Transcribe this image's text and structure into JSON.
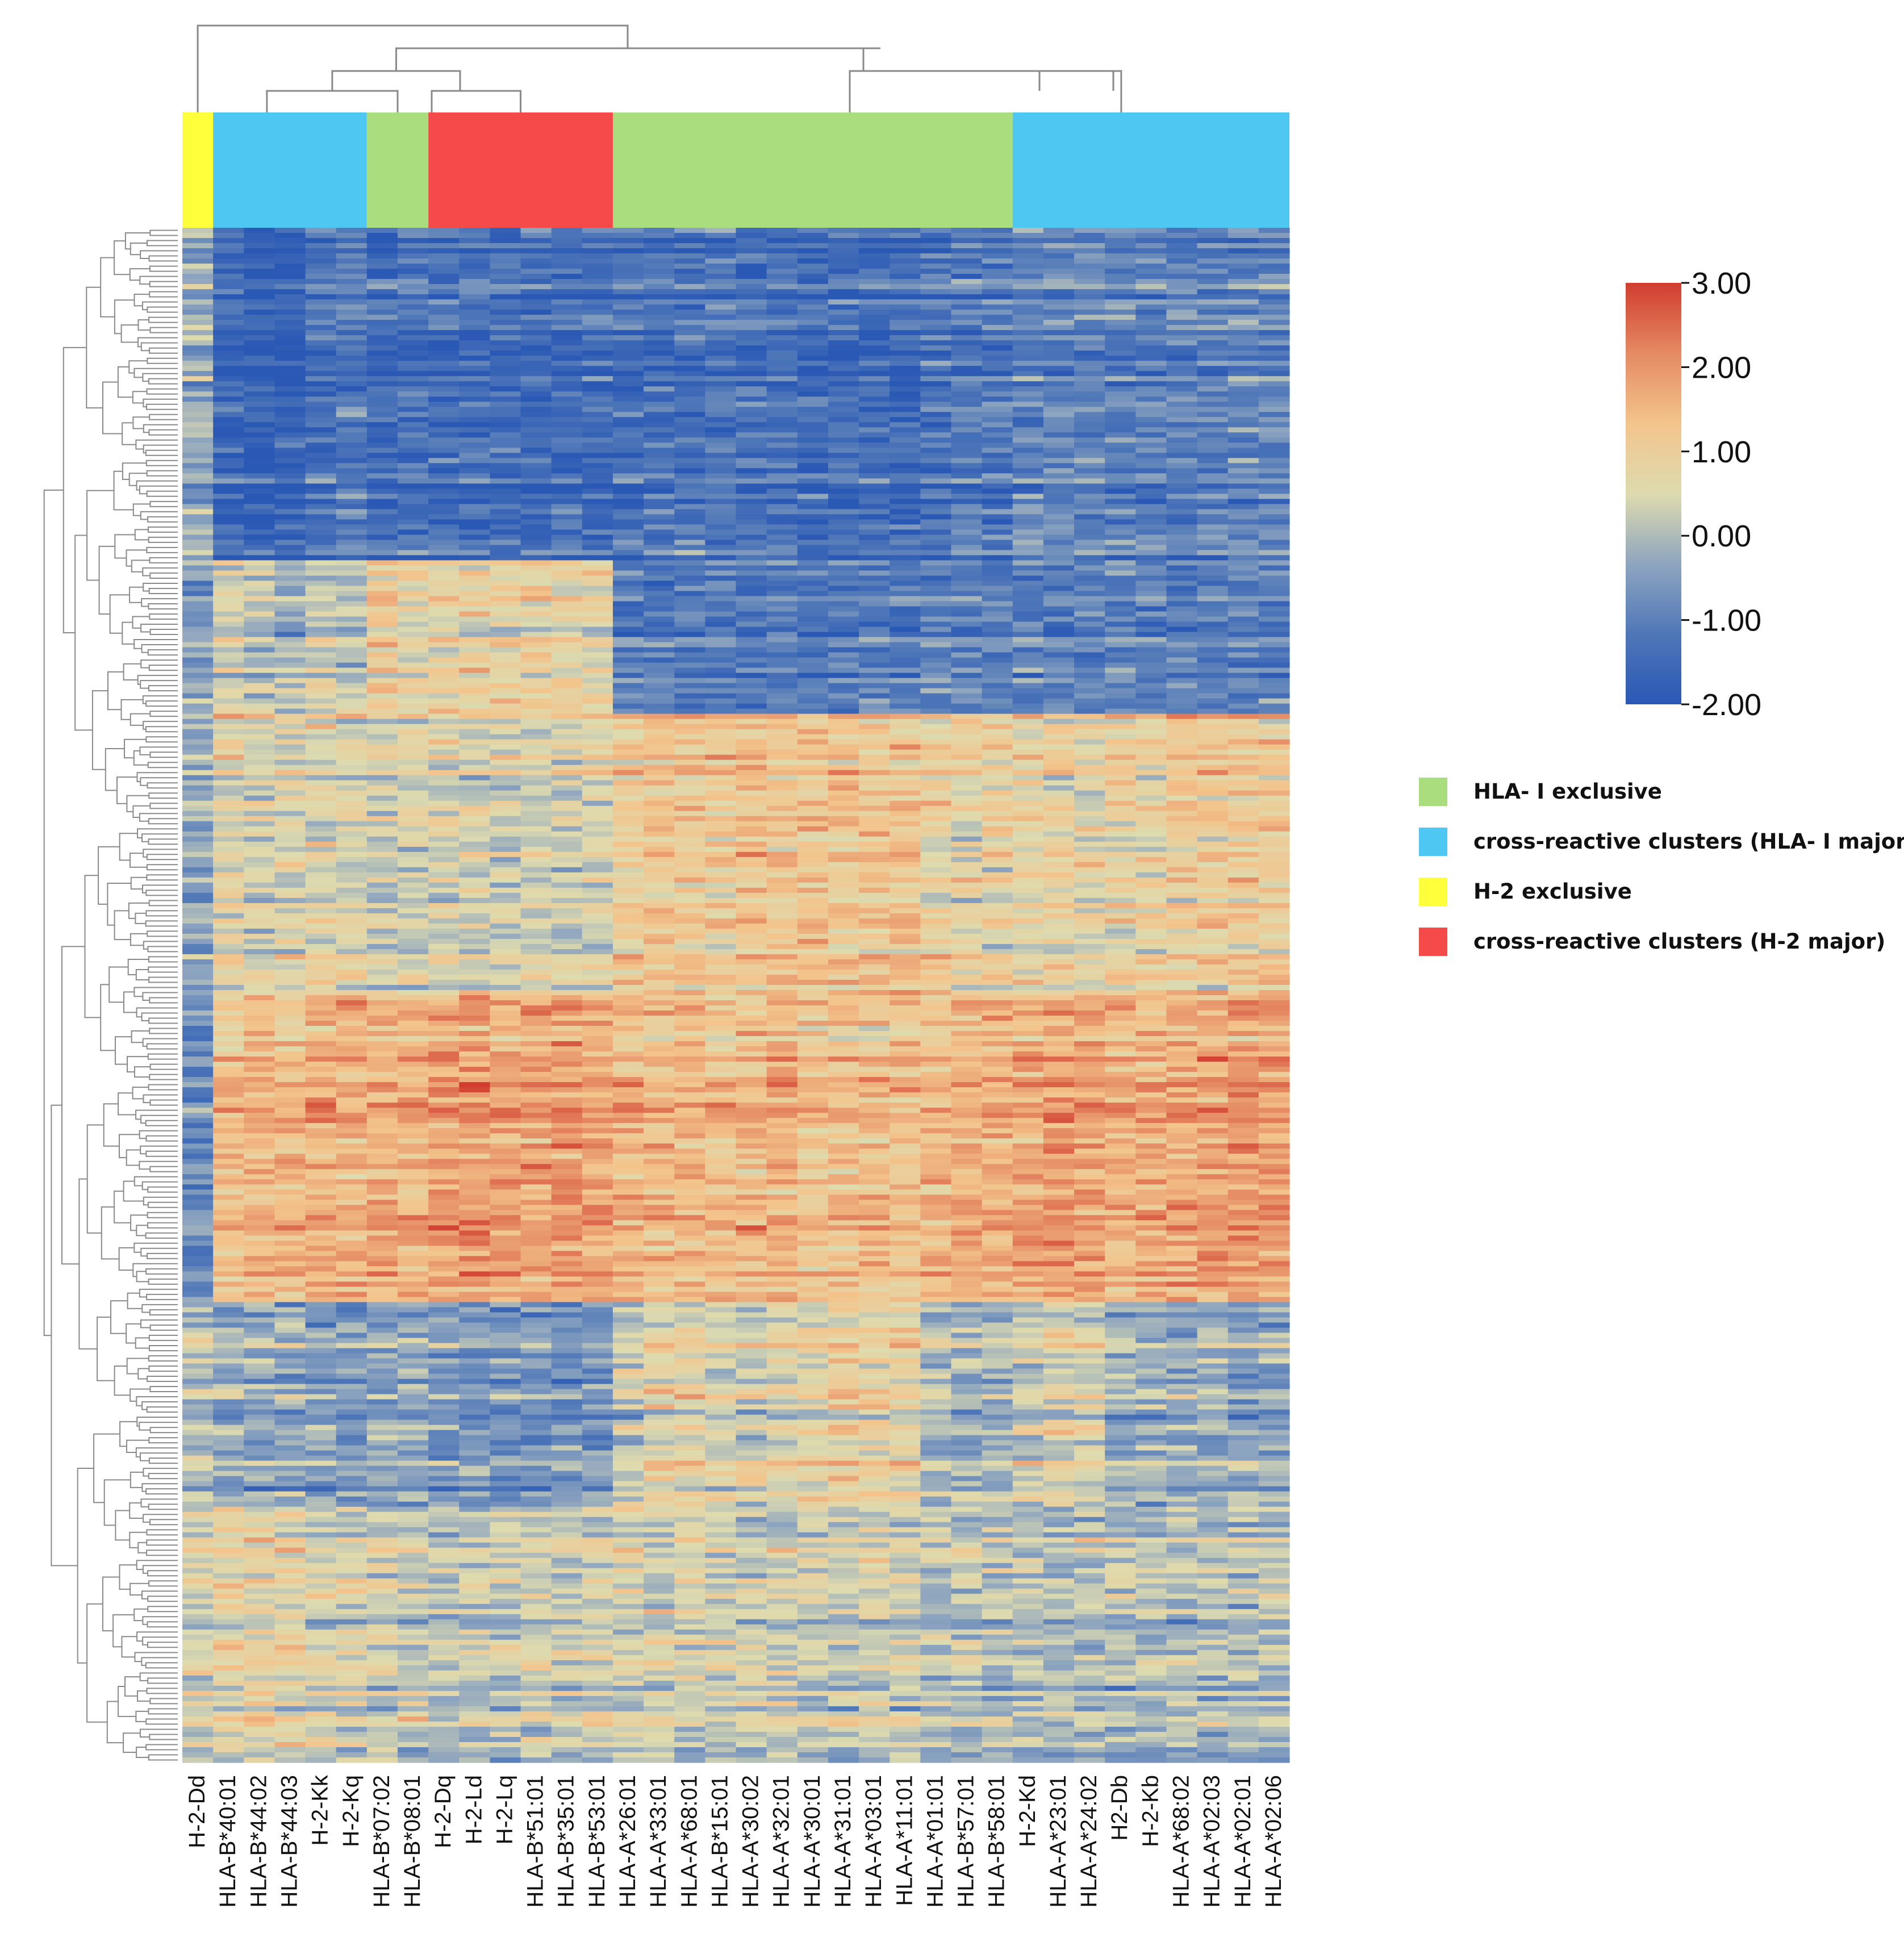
{
  "chart_data": {
    "type": "heatmap",
    "title": "",
    "columns": [
      "H-2-Dd",
      "HLA-B*40:01",
      "HLA-B*44:02",
      "HLA-B*44:03",
      "H-2-Kk",
      "H-2-Kq",
      "HLA-B*07:02",
      "HLA-B*08:01",
      "H-2-Dq",
      "H-2-Ld",
      "H-2-Lq",
      "HLA-B*51:01",
      "HLA-B*35:01",
      "HLA-B*53:01",
      "HLA-A*26:01",
      "HLA-A*33:01",
      "HLA-A*68:01",
      "HLA-B*15:01",
      "HLA-A*30:02",
      "HLA-A*32:01",
      "HLA-A*30:01",
      "HLA-A*31:01",
      "HLA-A*03:01",
      "HLA-A*11:01",
      "HLA-A*01:01",
      "HLA-B*57:01",
      "HLA-B*58:01",
      "H-2-Kd",
      "HLA-A*23:01",
      "HLA-A*24:02",
      "H2-Db",
      "H-2-Kb",
      "HLA-A*68:02",
      "HLA-A*02:03",
      "HLA-A*02:01",
      "HLA-A*02:06"
    ],
    "column_groups": [
      "yellow",
      "cyan",
      "cyan",
      "cyan",
      "cyan",
      "cyan",
      "green",
      "green",
      "red",
      "red",
      "red",
      "red",
      "red",
      "red",
      "green",
      "green",
      "green",
      "green",
      "green",
      "green",
      "green",
      "green",
      "green",
      "green",
      "green",
      "green",
      "green",
      "cyan",
      "cyan",
      "cyan",
      "cyan",
      "cyan",
      "cyan",
      "cyan",
      "cyan",
      "cyan"
    ],
    "group_colors": {
      "green": "#a9dd7e",
      "cyan": "#4ec8f3",
      "yellow": "#ffff3c",
      "red": "#f44a4a"
    },
    "color_scale": {
      "min": -2.0,
      "max": 3.0,
      "ticks": [
        "3.00",
        "2.00",
        "1.00",
        "0.00",
        "-1.00",
        "-2.00"
      ],
      "tick_values": [
        3,
        2,
        1,
        0,
        -1,
        -2
      ],
      "colors": [
        "#2a58b5",
        "#4f77b8",
        "#8ea5bf",
        "#dedbaf",
        "#f3c48c",
        "#e58a63",
        "#d13c2e"
      ]
    },
    "row_count": 300,
    "row_bands": [
      {
        "rows": [
          0,
          65
        ],
        "values": [
          -0.2,
          -1.5,
          -1.8,
          -1.7,
          -1.3,
          -1.1,
          -1.4,
          -1.3,
          -1.4,
          -1.3,
          -1.3,
          -1.4,
          -1.4,
          -1.4,
          -1.3,
          -1.3,
          -1.3,
          -1.2,
          -1.3,
          -1.3,
          -1.4,
          -1.4,
          -1.4,
          -1.5,
          -1.3,
          -1.2,
          -1.2,
          -0.9,
          -0.9,
          -0.9,
          -1.0,
          -1.0,
          -1.0,
          -1.0,
          -0.9,
          -0.9
        ]
      },
      {
        "rows": [
          65,
          95
        ],
        "values": [
          -0.5,
          0.5,
          0.1,
          -0.2,
          0.3,
          0.1,
          1.1,
          0.7,
          0.8,
          0.8,
          0.8,
          0.9,
          0.8,
          0.7,
          -1.0,
          -1.1,
          -1.1,
          -1.0,
          -1.1,
          -1.1,
          -1.2,
          -1.1,
          -1.1,
          -1.1,
          -1.0,
          -1.0,
          -1.0,
          -1.0,
          -1.0,
          -1.0,
          -1.0,
          -1.0,
          -1.0,
          -1.0,
          -1.0,
          -1.0
        ]
      },
      {
        "rows": [
          95,
          150
        ],
        "values": [
          -0.2,
          0.8,
          0.6,
          0.6,
          0.6,
          0.6,
          0.4,
          0.4,
          0.5,
          0.5,
          0.5,
          0.5,
          0.5,
          0.5,
          1.1,
          1.3,
          1.3,
          1.2,
          1.3,
          1.2,
          1.3,
          1.3,
          1.3,
          1.3,
          1.0,
          0.9,
          0.9,
          0.8,
          0.9,
          0.8,
          0.9,
          0.9,
          1.1,
          1.2,
          1.2,
          1.1
        ]
      },
      {
        "rows": [
          150,
          210
        ],
        "values": [
          -0.8,
          1.3,
          1.5,
          1.4,
          1.7,
          1.5,
          1.6,
          1.6,
          1.9,
          1.9,
          1.9,
          1.8,
          1.8,
          1.8,
          1.5,
          1.4,
          1.4,
          1.4,
          1.5,
          1.6,
          1.3,
          1.3,
          1.3,
          1.3,
          1.4,
          1.6,
          1.6,
          1.7,
          1.8,
          1.8,
          1.6,
          1.6,
          1.7,
          1.8,
          1.8,
          1.8
        ]
      },
      {
        "rows": [
          210,
          250
        ],
        "values": [
          0.1,
          -0.2,
          -0.2,
          -0.3,
          -0.5,
          -0.5,
          -0.3,
          -0.3,
          -0.6,
          -0.6,
          -0.6,
          -0.6,
          -0.6,
          -0.6,
          0.3,
          0.7,
          0.7,
          0.5,
          0.4,
          0.6,
          0.7,
          0.9,
          0.9,
          0.8,
          0.0,
          -0.1,
          -0.1,
          0.3,
          0.5,
          0.5,
          -0.2,
          -0.2,
          -0.3,
          -0.3,
          -0.3,
          -0.3
        ]
      },
      {
        "rows": [
          250,
          300
        ],
        "values": [
          0.4,
          0.7,
          0.8,
          0.7,
          0.4,
          0.4,
          0.3,
          0.3,
          0.1,
          0.2,
          0.2,
          0.3,
          0.3,
          0.3,
          0.3,
          0.4,
          0.4,
          0.3,
          0.3,
          0.3,
          0.3,
          0.3,
          0.3,
          0.3,
          0.1,
          0.1,
          0.1,
          0.0,
          0.0,
          0.0,
          0.0,
          0.0,
          0.0,
          0.0,
          0.0,
          0.0
        ]
      }
    ],
    "legend": {
      "placement": "right",
      "entries": [
        {
          "label": "HLA- I  exclusive",
          "color": "#a9dd7e"
        },
        {
          "label": "cross-reactive clusters (HLA- I major)",
          "color": "#4ec8f3"
        },
        {
          "label": "H-2 exclusive",
          "color": "#ffff3c"
        },
        {
          "label": "cross-reactive clusters (H-2 major)",
          "color": "#f44a4a"
        }
      ]
    },
    "dendrograms": {
      "column": true,
      "row": true
    }
  }
}
